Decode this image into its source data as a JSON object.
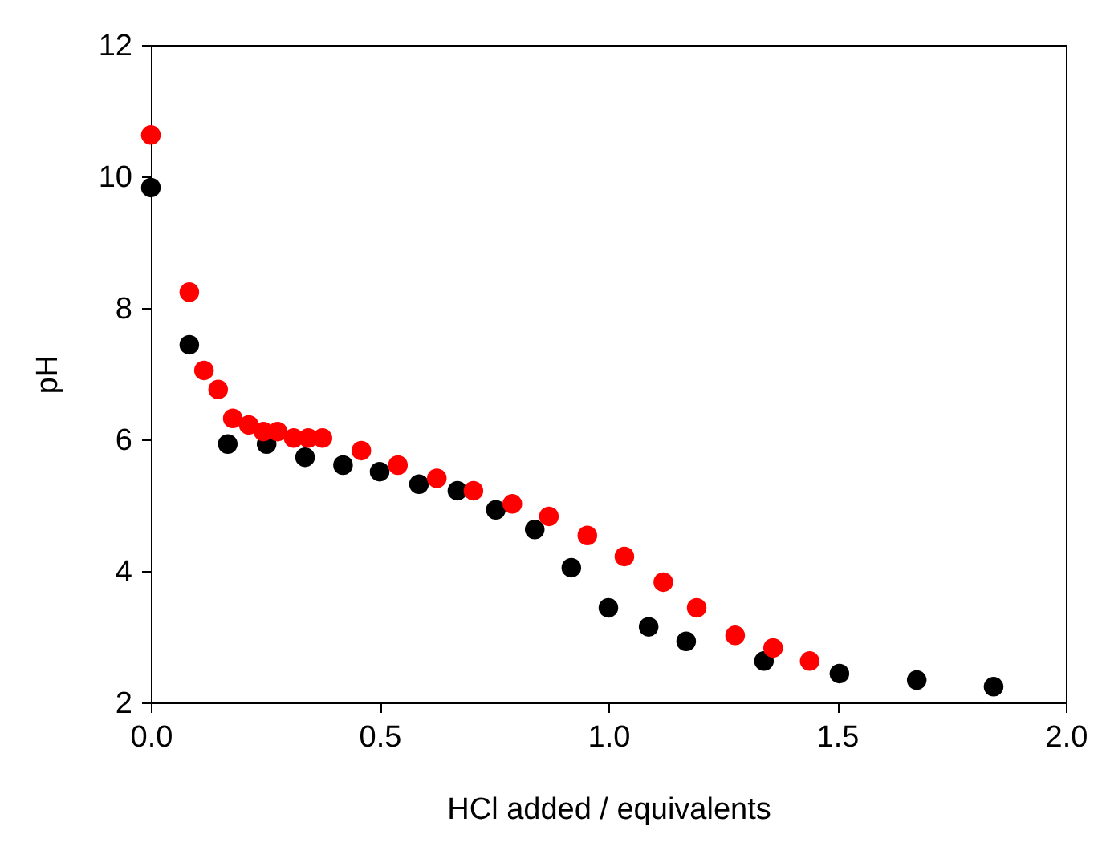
{
  "chart_data": {
    "type": "scatter",
    "xlabel": "HCl added / equivalents",
    "ylabel": "pH",
    "xlim": [
      0,
      2
    ],
    "xticks": [
      {
        "value": 0,
        "label": "0.0"
      },
      {
        "value": 0.5,
        "label": "0.5"
      },
      {
        "value": 1,
        "label": "1.0"
      },
      {
        "value": 1.5,
        "label": "1.5"
      },
      {
        "value": 2,
        "label": "2.0"
      }
    ],
    "ylim": [
      2,
      12
    ],
    "yticks": [
      2,
      4,
      6,
      8,
      10,
      12
    ],
    "grid": false,
    "legend": false,
    "marker": "circle",
    "series": [
      {
        "color": "#000000",
        "x": [
          0,
          0.084,
          0.168,
          0.253,
          0.337,
          0.42,
          0.5,
          0.586,
          0.67,
          0.754,
          0.839,
          0.919,
          1.0,
          1.088,
          1.17,
          1.34,
          1.505,
          1.674,
          1.842
        ],
        "values": [
          9.83,
          7.44,
          5.93,
          5.93,
          5.73,
          5.61,
          5.51,
          5.32,
          5.22,
          4.93,
          4.63,
          4.05,
          3.44,
          3.15,
          2.93,
          2.63,
          2.44,
          2.34,
          2.24
        ]
      },
      {
        "color": "#ff0000",
        "x": [
          0,
          0.084,
          0.116,
          0.147,
          0.179,
          0.214,
          0.246,
          0.277,
          0.312,
          0.344,
          0.375,
          0.46,
          0.54,
          0.625,
          0.705,
          0.79,
          0.87,
          0.954,
          1.035,
          1.12,
          1.193,
          1.277,
          1.36,
          1.44
        ],
        "values": [
          10.63,
          8.24,
          7.05,
          6.76,
          6.32,
          6.22,
          6.12,
          6.12,
          6.02,
          6.02,
          6.02,
          5.83,
          5.61,
          5.41,
          5.22,
          5.02,
          4.83,
          4.54,
          4.22,
          3.83,
          3.44,
          3.02,
          2.83,
          2.63
        ]
      }
    ]
  }
}
